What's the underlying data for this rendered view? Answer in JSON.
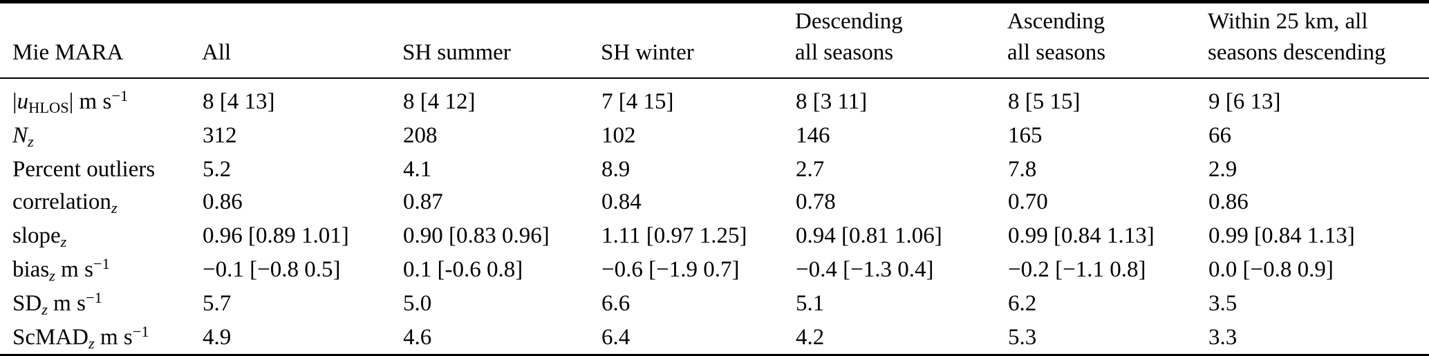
{
  "table": {
    "columns": [
      {
        "name": "mie-mara",
        "lines": [
          "Mie MARA"
        ]
      },
      {
        "name": "all",
        "lines": [
          "All"
        ]
      },
      {
        "name": "sh-summer",
        "lines": [
          "SH summer"
        ]
      },
      {
        "name": "sh-winter",
        "lines": [
          "SH winter"
        ]
      },
      {
        "name": "descending",
        "lines": [
          "Descending",
          "all seasons"
        ]
      },
      {
        "name": "ascending",
        "lines": [
          "Ascending",
          "all seasons"
        ]
      },
      {
        "name": "within-25km",
        "lines": [
          "Within 25 km, all",
          "seasons descending"
        ]
      }
    ],
    "rows": [
      {
        "name": "uhlos",
        "label": [
          {
            "t": "|"
          },
          {
            "t": "u",
            "i": true
          },
          {
            "t": "HLOS",
            "sub": true
          },
          {
            "t": "| m s"
          },
          {
            "t": "−1",
            "sup": true
          }
        ],
        "values": [
          "8 [4 13]",
          "8 [4 12]",
          "7 [4 15]",
          "8 [3 11]",
          "8 [5 15]",
          "9 [6 13]"
        ]
      },
      {
        "name": "nz",
        "label": [
          {
            "t": "N",
            "i": true
          },
          {
            "t": "z",
            "sub": true,
            "i": true
          }
        ],
        "values": [
          "312",
          "208",
          "102",
          "146",
          "165",
          "66"
        ]
      },
      {
        "name": "percent-outliers",
        "label": [
          {
            "t": "Percent outliers"
          }
        ],
        "values": [
          "5.2",
          "4.1",
          "8.9",
          "2.7",
          "7.8",
          "2.9"
        ]
      },
      {
        "name": "correlation",
        "label": [
          {
            "t": "correlation"
          },
          {
            "t": "z",
            "sub": true,
            "i": true
          }
        ],
        "values": [
          "0.86",
          "0.87",
          "0.84",
          "0.78",
          "0.70",
          "0.86"
        ]
      },
      {
        "name": "slope",
        "label": [
          {
            "t": "slope"
          },
          {
            "t": "z",
            "sub": true,
            "i": true
          }
        ],
        "values": [
          "0.96 [0.89 1.01]",
          "0.90 [0.83 0.96]",
          "1.11 [0.97 1.25]",
          "0.94 [0.81 1.06]",
          "0.99 [0.84 1.13]",
          "0.99 [0.84 1.13]"
        ]
      },
      {
        "name": "bias",
        "label": [
          {
            "t": "bias"
          },
          {
            "t": "z",
            "sub": true,
            "i": true
          },
          {
            "t": " m s"
          },
          {
            "t": "−1",
            "sup": true
          }
        ],
        "values": [
          "−0.1 [−0.8 0.5]",
          "0.1 [-0.6 0.8]",
          "−0.6 [−1.9 0.7]",
          "−0.4 [−1.3 0.4]",
          "−0.2 [−1.1 0.8]",
          "0.0 [−0.8 0.9]"
        ]
      },
      {
        "name": "sd",
        "label": [
          {
            "t": "SD"
          },
          {
            "t": "z",
            "sub": true,
            "i": true
          },
          {
            "t": " m s"
          },
          {
            "t": "−1",
            "sup": true
          }
        ],
        "values": [
          "5.7",
          "5.0",
          "6.6",
          "5.1",
          "6.2",
          "3.5"
        ]
      },
      {
        "name": "scmad",
        "label": [
          {
            "t": "ScMAD"
          },
          {
            "t": "z",
            "sub": true,
            "i": true
          },
          {
            "t": " m s"
          },
          {
            "t": "−1",
            "sup": true
          }
        ],
        "values": [
          "4.9",
          "4.6",
          "6.4",
          "4.2",
          "5.3",
          "3.3"
        ]
      }
    ]
  }
}
